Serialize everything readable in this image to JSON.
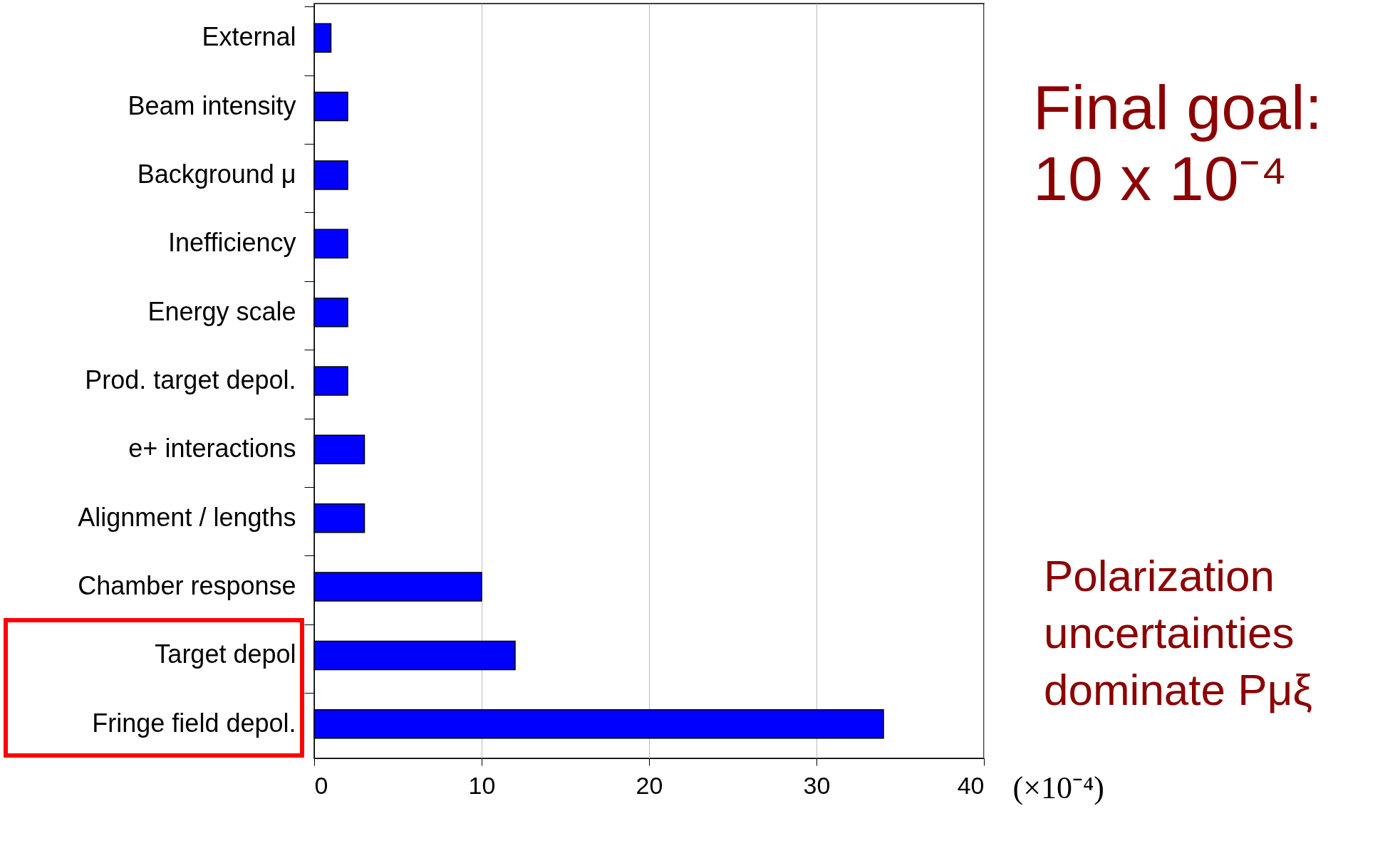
{
  "chart_data": {
    "type": "bar",
    "orientation": "horizontal",
    "categories": [
      "External",
      "Beam intensity",
      "Background μ",
      "Inefficiency",
      "Energy scale",
      "Prod. target depol.",
      "e+ interactions",
      "Alignment / lengths",
      "Chamber response",
      "Target depol",
      "Fringe field depol."
    ],
    "values": [
      1,
      2,
      2,
      2,
      2,
      2,
      3,
      3,
      10,
      12,
      34
    ],
    "color": "#0000ff",
    "xlim": [
      0,
      40
    ],
    "xticks": [
      0,
      10,
      20,
      30,
      40
    ],
    "xlabel": "(×10⁻⁴)",
    "grid": "x",
    "annotations": [
      "Final goal:\n10 x 10⁻⁴",
      "Polarization\nuncertainties\ndominate Pμξ"
    ]
  }
}
